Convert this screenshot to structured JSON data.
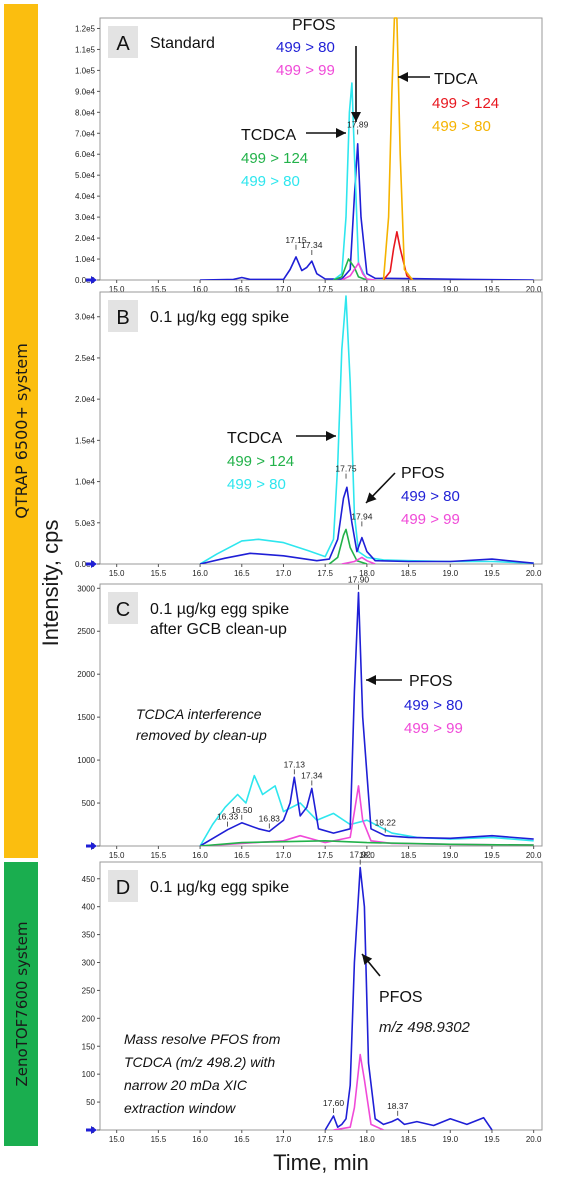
{
  "figure": {
    "ylabel": "Intensity, cps",
    "xlabel": "Time, min"
  },
  "systems": [
    {
      "label": "QTRAP 6500+ system",
      "color": "#FBBE0F"
    },
    {
      "label": "ZenoTOF7600 system",
      "color": "#1AAE4F"
    }
  ],
  "colors": {
    "blue": "#1f1fd6",
    "cyan": "#2ee6ee",
    "magenta": "#f04ad8",
    "green": "#22b24a",
    "red": "#e8171f",
    "gold": "#f5b300"
  },
  "chart_data": [
    {
      "type": "line",
      "panel": "A",
      "title": "Standard",
      "xlim": [
        14.8,
        20.1
      ],
      "ylim": [
        0,
        125000
      ],
      "y_ticks": [
        0,
        10000,
        20000,
        30000,
        40000,
        50000,
        60000,
        70000,
        80000,
        90000,
        100000,
        110000,
        120000
      ],
      "y_tick_labels": [
        "0.0e0",
        "1.0e4",
        "2.0e4",
        "3.0e4",
        "4.0e4",
        "5.0e4",
        "6.0e4",
        "7.0e4",
        "8.0e4",
        "9.0e4",
        "1.0e5",
        "1.1e5",
        "1.2e5"
      ],
      "x_ticks": [
        15.0,
        15.5,
        16.0,
        16.5,
        17.0,
        17.5,
        18.0,
        18.5,
        19.0,
        19.5,
        20.0
      ],
      "x_tick_labels": [
        "15.0",
        "15.5",
        "16.0",
        "16.5",
        "17.0",
        "17.5",
        "18.0",
        "18.5",
        "19.0",
        "19.5",
        "20.0"
      ],
      "series": [
        {
          "color": "blue",
          "x": [
            16.0,
            16.4,
            16.5,
            16.6,
            17.0,
            17.08,
            17.15,
            17.22,
            17.28,
            17.34,
            17.4,
            17.5,
            17.7,
            17.8,
            17.85,
            17.89,
            17.93,
            18.0,
            18.1,
            18.6,
            19.2,
            20.0
          ],
          "y": [
            0,
            300,
            1200,
            300,
            300,
            5000,
            11000,
            4500,
            6000,
            9000,
            3000,
            500,
            500,
            5000,
            40000,
            65000,
            30000,
            3000,
            800,
            600,
            300,
            0
          ]
        },
        {
          "color": "cyan",
          "x": [
            17.6,
            17.7,
            17.75,
            17.79,
            17.82,
            17.85,
            17.9,
            18.0
          ],
          "y": [
            0,
            3000,
            30000,
            80000,
            94000,
            60000,
            8000,
            0
          ]
        },
        {
          "color": "green",
          "x": [
            17.6,
            17.7,
            17.78,
            17.85,
            17.9,
            18.0
          ],
          "y": [
            0,
            1500,
            10000,
            6000,
            1500,
            0
          ]
        },
        {
          "color": "magenta",
          "x": [
            17.7,
            17.8,
            17.9,
            17.95,
            18.0,
            18.1
          ],
          "y": [
            0,
            2000,
            8000,
            3000,
            500,
            0
          ]
        },
        {
          "color": "red",
          "x": [
            18.2,
            18.28,
            18.32,
            18.36,
            18.4,
            18.48,
            18.55
          ],
          "y": [
            0,
            4000,
            15000,
            23000,
            15000,
            2000,
            0
          ]
        },
        {
          "color": "gold",
          "x": [
            18.2,
            18.26,
            18.3,
            18.33,
            18.36,
            18.4,
            18.45,
            18.55
          ],
          "y": [
            0,
            30000,
            90000,
            125000,
            125000,
            60000,
            5000,
            0
          ]
        }
      ],
      "peak_labels": [
        {
          "text": "17.15",
          "x": 17.15,
          "y": 13000
        },
        {
          "text": "17.34",
          "x": 17.34,
          "y": 10500
        },
        {
          "text": "17.89",
          "x": 17.89,
          "y": 68000
        }
      ],
      "annotations": [
        {
          "title": "PFOS",
          "lines": [
            {
              "text": "499 > 80",
              "color": "blue"
            },
            {
              "text": "499 > 99",
              "color": "magenta"
            }
          ]
        },
        {
          "title": "TDCA",
          "lines": [
            {
              "text": "499 > 124",
              "color": "red"
            },
            {
              "text": "499 > 80",
              "color": "gold"
            }
          ]
        },
        {
          "title": "TCDCA",
          "lines": [
            {
              "text": "499 > 124",
              "color": "green"
            },
            {
              "text": "499 > 80",
              "color": "cyan"
            }
          ]
        }
      ]
    },
    {
      "type": "line",
      "panel": "B",
      "title": "0.1 µg/kg egg spike",
      "xlim": [
        14.8,
        20.1
      ],
      "ylim": [
        0,
        33000
      ],
      "y_ticks": [
        0,
        5000,
        10000,
        15000,
        20000,
        25000,
        30000
      ],
      "y_tick_labels": [
        "0.0e0",
        "5.0e3",
        "1.0e4",
        "1.5e4",
        "2.0e4",
        "2.5e4",
        "3.0e4"
      ],
      "x_ticks": [
        15.0,
        15.5,
        16.0,
        16.5,
        17.0,
        17.5,
        18.0,
        18.5,
        19.0,
        19.5,
        20.0
      ],
      "x_tick_labels": [
        "15.0",
        "15.5",
        "16.0",
        "16.5",
        "17.0",
        "17.5",
        "18.0",
        "18.5",
        "19.0",
        "19.5",
        "20.0"
      ],
      "series": [
        {
          "color": "cyan",
          "x": [
            16.0,
            16.2,
            16.5,
            16.7,
            17.0,
            17.3,
            17.5,
            17.6,
            17.65,
            17.7,
            17.75,
            17.8,
            17.85,
            17.9,
            18.0,
            18.2,
            18.5,
            19.0,
            19.5,
            20.0
          ],
          "y": [
            0,
            1200,
            2800,
            3000,
            2600,
            1600,
            900,
            3000,
            12000,
            26000,
            32500,
            22000,
            6000,
            1500,
            800,
            500,
            400,
            300,
            300,
            100
          ]
        },
        {
          "color": "blue",
          "x": [
            16.0,
            16.3,
            16.6,
            17.0,
            17.4,
            17.55,
            17.65,
            17.72,
            17.76,
            17.82,
            17.88,
            17.94,
            18.0,
            18.1,
            18.5,
            19.0,
            19.5,
            20.0
          ],
          "y": [
            0,
            700,
            1300,
            1000,
            400,
            600,
            3000,
            8000,
            9300,
            5000,
            1500,
            3200,
            1500,
            400,
            300,
            300,
            600,
            100
          ]
        },
        {
          "color": "green",
          "x": [
            17.55,
            17.65,
            17.72,
            17.75,
            17.8,
            17.88,
            18.0
          ],
          "y": [
            0,
            800,
            3500,
            4200,
            2000,
            400,
            0
          ]
        },
        {
          "color": "magenta",
          "x": [
            17.7,
            17.85,
            17.94,
            18.0,
            18.1
          ],
          "y": [
            0,
            300,
            800,
            400,
            0
          ]
        }
      ],
      "peak_labels": [
        {
          "text": "17.75",
          "x": 17.75,
          "y": 10000
        },
        {
          "text": "17.94",
          "x": 17.94,
          "y": 4200
        }
      ],
      "annotations": [
        {
          "title": "TCDCA",
          "lines": [
            {
              "text": "499 > 124",
              "color": "green"
            },
            {
              "text": "499 > 80",
              "color": "cyan"
            }
          ]
        },
        {
          "title": "PFOS",
          "lines": [
            {
              "text": "499 > 80",
              "color": "blue"
            },
            {
              "text": "499 > 99",
              "color": "magenta"
            }
          ]
        }
      ]
    },
    {
      "type": "line",
      "panel": "C",
      "title": "0.1 µg/kg egg spike",
      "subtitle": "after GCB clean-up",
      "xlim": [
        14.8,
        20.1
      ],
      "ylim": [
        0,
        3050
      ],
      "y_ticks": [
        0,
        500,
        1000,
        1500,
        2000,
        2500,
        3000
      ],
      "y_tick_labels": [
        "0",
        "500",
        "1000",
        "1500",
        "2000",
        "2500",
        "3000"
      ],
      "x_ticks": [
        15.0,
        15.5,
        16.0,
        16.5,
        17.0,
        17.5,
        18.0,
        18.5,
        19.0,
        19.5,
        20.0
      ],
      "x_tick_labels": [
        "15.0",
        "15.5",
        "16.0",
        "16.5",
        "17.0",
        "17.5",
        "18.0",
        "18.5",
        "19.0",
        "19.5",
        "20.0"
      ],
      "series": [
        {
          "color": "cyan",
          "x": [
            16.0,
            16.15,
            16.3,
            16.45,
            16.55,
            16.65,
            16.75,
            16.9,
            17.0,
            17.2,
            17.4,
            17.6,
            17.8,
            18.0,
            18.3,
            18.6,
            19.0,
            19.5,
            20.0
          ],
          "y": [
            0,
            250,
            450,
            600,
            500,
            820,
            600,
            700,
            400,
            500,
            300,
            380,
            250,
            300,
            150,
            100,
            80,
            100,
            60
          ]
        },
        {
          "color": "blue",
          "x": [
            16.0,
            16.33,
            16.5,
            16.7,
            16.83,
            17.0,
            17.08,
            17.13,
            17.2,
            17.28,
            17.34,
            17.42,
            17.6,
            17.8,
            17.85,
            17.9,
            17.95,
            18.05,
            18.22,
            18.5,
            19.0,
            19.5,
            20.0
          ],
          "y": [
            0,
            190,
            270,
            200,
            170,
            300,
            500,
            800,
            350,
            450,
            670,
            200,
            150,
            200,
            1800,
            2950,
            1500,
            200,
            120,
            100,
            90,
            120,
            80
          ]
        },
        {
          "color": "magenta",
          "x": [
            16.0,
            16.5,
            17.0,
            17.2,
            17.5,
            17.8,
            17.85,
            17.9,
            17.95,
            18.05,
            18.3,
            19.0,
            20.0
          ],
          "y": [
            0,
            30,
            60,
            120,
            40,
            100,
            400,
            700,
            300,
            60,
            30,
            20,
            10
          ]
        },
        {
          "color": "green",
          "x": [
            16.0,
            16.5,
            17.0,
            17.5,
            18.0,
            18.5,
            19.0,
            20.0
          ],
          "y": [
            0,
            40,
            50,
            60,
            40,
            30,
            20,
            10
          ]
        }
      ],
      "peak_labels": [
        {
          "text": "17.90",
          "x": 17.9,
          "y": 2950
        },
        {
          "text": "17.13",
          "x": 17.13,
          "y": 800
        },
        {
          "text": "17.34",
          "x": 17.34,
          "y": 670
        },
        {
          "text": "16.33",
          "x": 16.33,
          "y": 190
        },
        {
          "text": "16.50",
          "x": 16.5,
          "y": 270
        },
        {
          "text": "16.83",
          "x": 16.83,
          "y": 170
        },
        {
          "text": "18.22",
          "x": 18.22,
          "y": 120
        }
      ],
      "annotations": [
        {
          "title": "PFOS",
          "lines": [
            {
              "text": "499 > 80",
              "color": "blue"
            },
            {
              "text": "499 > 99",
              "color": "magenta"
            }
          ]
        }
      ],
      "note": [
        "TCDCA interference",
        "removed by clean-up"
      ]
    },
    {
      "type": "line",
      "panel": "D",
      "title": "0.1 µg/kg egg spike",
      "xlim": [
        14.8,
        20.1
      ],
      "ylim": [
        0,
        480
      ],
      "y_ticks": [
        0,
        50,
        100,
        150,
        200,
        250,
        300,
        350,
        400,
        450
      ],
      "y_tick_labels": [
        "0",
        "50",
        "100",
        "150",
        "200",
        "250",
        "300",
        "350",
        "400",
        "450"
      ],
      "x_ticks": [
        15.0,
        15.5,
        16.0,
        16.5,
        17.0,
        17.5,
        18.0,
        18.5,
        19.0,
        19.5,
        20.0
      ],
      "x_tick_labels": [
        "15.0",
        "15.5",
        "16.0",
        "16.5",
        "17.0",
        "17.5",
        "18.0",
        "18.5",
        "19.0",
        "19.5",
        "20.0"
      ],
      "series": [
        {
          "color": "blue",
          "x": [
            17.5,
            17.6,
            17.65,
            17.7,
            17.75,
            17.8,
            17.85,
            17.92,
            17.97,
            18.02,
            18.1,
            18.2,
            18.3,
            18.37,
            18.45,
            18.6,
            18.8,
            19.0,
            19.2,
            19.4,
            19.5
          ],
          "y": [
            0,
            25,
            5,
            10,
            20,
            80,
            300,
            470,
            400,
            120,
            20,
            10,
            15,
            20,
            10,
            15,
            8,
            20,
            10,
            22,
            0
          ]
        },
        {
          "color": "magenta",
          "x": [
            17.6,
            17.8,
            17.85,
            17.92,
            17.97,
            18.05,
            18.2
          ],
          "y": [
            0,
            5,
            40,
            135,
            90,
            10,
            0
          ]
        }
      ],
      "peak_labels": [
        {
          "text": "17.92",
          "x": 17.92,
          "y": 470
        },
        {
          "text": "17.60",
          "x": 17.6,
          "y": 25
        },
        {
          "text": "18.37",
          "x": 18.37,
          "y": 20
        }
      ],
      "annotations": [
        {
          "title": "PFOS",
          "lines": [
            {
              "text": "m/z 498.9302",
              "color": "black"
            }
          ]
        }
      ],
      "note": [
        "Mass resolve PFOS from",
        "TCDCA (m/z 498.2) with",
        "narrow 20 mDa XIC",
        "extraction window"
      ]
    }
  ]
}
